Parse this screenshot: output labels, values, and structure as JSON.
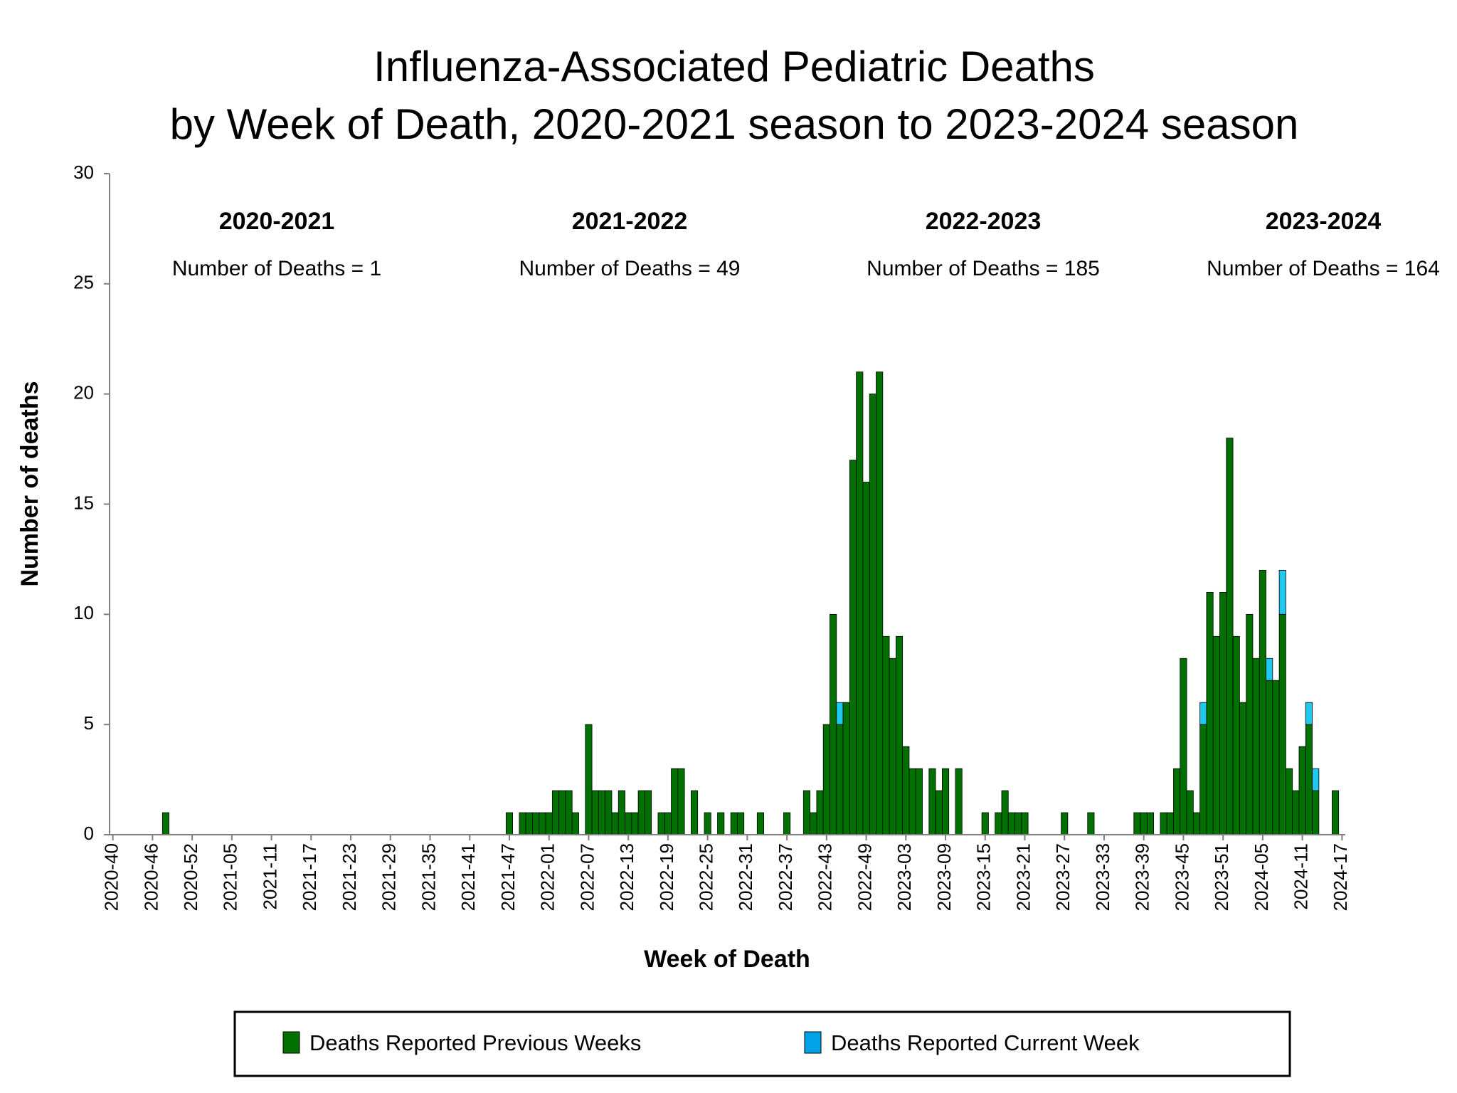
{
  "chart_data": {
    "type": "stacked_bar",
    "title": [
      "Influenza-Associated Pediatric Deaths",
      "by Week of Death, 2020-2021 season to 2023-2024 season"
    ],
    "xlabel": "Week of Death",
    "ylabel": "Number of deaths",
    "annotations": [
      {
        "title": "2020-2021",
        "text": "Number of Deaths = 1"
      },
      {
        "title": "2021-2022",
        "text": "Number of Deaths = 49"
      },
      {
        "title": "2022-2023",
        "text": "Number of Deaths = 185"
      },
      {
        "title": "2023-2024",
        "text": "Number of Deaths = 164"
      }
    ],
    "categories": [
      "2020-40",
      null,
      null,
      null,
      null,
      null,
      "2020-46",
      null,
      null,
      null,
      null,
      null,
      "2020-52",
      null,
      null,
      null,
      null,
      null,
      "2021-05",
      null,
      null,
      null,
      null,
      null,
      "2021-11",
      null,
      null,
      null,
      null,
      null,
      "2021-17",
      null,
      null,
      null,
      null,
      null,
      "2021-23",
      null,
      null,
      null,
      null,
      null,
      "2021-29",
      null,
      null,
      null,
      null,
      null,
      "2021-35",
      null,
      null,
      null,
      null,
      null,
      "2021-41",
      null,
      null,
      null,
      null,
      null,
      "2021-47",
      null,
      null,
      null,
      null,
      null,
      "2022-01",
      null,
      null,
      null,
      null,
      null,
      "2022-07",
      null,
      null,
      null,
      null,
      null,
      "2022-13",
      null,
      null,
      null,
      null,
      null,
      "2022-19",
      null,
      null,
      null,
      null,
      null,
      "2022-25",
      null,
      null,
      null,
      null,
      null,
      "2022-31",
      null,
      null,
      null,
      null,
      null,
      "2022-37",
      null,
      null,
      null,
      null,
      null,
      "2022-43",
      null,
      null,
      null,
      null,
      null,
      "2022-49",
      null,
      null,
      null,
      null,
      null,
      "2023-03",
      null,
      null,
      null,
      null,
      null,
      "2023-09",
      null,
      null,
      null,
      null,
      null,
      "2023-15",
      null,
      null,
      null,
      null,
      null,
      "2023-21",
      null,
      null,
      null,
      null,
      null,
      "2023-27",
      null,
      null,
      null,
      null,
      null,
      "2023-33",
      null,
      null,
      null,
      null,
      null,
      "2023-39",
      null,
      null,
      null,
      null,
      null,
      "2023-45",
      null,
      null,
      null,
      null,
      null,
      "2023-51",
      null,
      null,
      null,
      null,
      null,
      "2024-05",
      null,
      null,
      null,
      null,
      null,
      "2024-11",
      null,
      null,
      null,
      null,
      null,
      "2024-17"
    ],
    "series": [
      {
        "name": "Deaths Reported Previous Weeks",
        "color": "#007000",
        "values": [
          0,
          0,
          0,
          0,
          0,
          0,
          0,
          0,
          1,
          0,
          0,
          0,
          0,
          0,
          0,
          0,
          0,
          0,
          0,
          0,
          0,
          0,
          0,
          0,
          0,
          0,
          0,
          0,
          0,
          0,
          0,
          0,
          0,
          0,
          0,
          0,
          0,
          0,
          0,
          0,
          0,
          0,
          0,
          0,
          0,
          0,
          0,
          0,
          0,
          0,
          0,
          0,
          0,
          0,
          0,
          0,
          0,
          0,
          0,
          0,
          1,
          0,
          1,
          1,
          1,
          1,
          1,
          2,
          2,
          2,
          1,
          0,
          5,
          2,
          2,
          2,
          1,
          2,
          1,
          1,
          2,
          2,
          0,
          1,
          1,
          3,
          3,
          0,
          2,
          0,
          1,
          0,
          1,
          0,
          1,
          1,
          0,
          0,
          1,
          0,
          0,
          0,
          1,
          0,
          0,
          2,
          1,
          2,
          5,
          10,
          5,
          6,
          17,
          21,
          16,
          20,
          21,
          9,
          8,
          9,
          4,
          3,
          3,
          0,
          3,
          2,
          3,
          0,
          3,
          0,
          0,
          0,
          1,
          0,
          1,
          2,
          1,
          1,
          1,
          0,
          0,
          0,
          0,
          0,
          1,
          0,
          0,
          0,
          1,
          0,
          0,
          0,
          0,
          0,
          0,
          1,
          1,
          1,
          0,
          1,
          1,
          3,
          8,
          2,
          1,
          5,
          11,
          9,
          11,
          18,
          9,
          6,
          10,
          8,
          12,
          7,
          7,
          10,
          3,
          2,
          4,
          5,
          2,
          0,
          0,
          2,
          0
        ]
      },
      {
        "name": "Deaths Reported Current Week",
        "color": "#1ec8ee",
        "legend_color": "#00a2e8",
        "values": [
          0,
          0,
          0,
          0,
          0,
          0,
          0,
          0,
          0,
          0,
          0,
          0,
          0,
          0,
          0,
          0,
          0,
          0,
          0,
          0,
          0,
          0,
          0,
          0,
          0,
          0,
          0,
          0,
          0,
          0,
          0,
          0,
          0,
          0,
          0,
          0,
          0,
          0,
          0,
          0,
          0,
          0,
          0,
          0,
          0,
          0,
          0,
          0,
          0,
          0,
          0,
          0,
          0,
          0,
          0,
          0,
          0,
          0,
          0,
          0,
          0,
          0,
          0,
          0,
          0,
          0,
          0,
          0,
          0,
          0,
          0,
          0,
          0,
          0,
          0,
          0,
          0,
          0,
          0,
          0,
          0,
          0,
          0,
          0,
          0,
          0,
          0,
          0,
          0,
          0,
          0,
          0,
          0,
          0,
          0,
          0,
          0,
          0,
          0,
          0,
          0,
          0,
          0,
          0,
          0,
          0,
          0,
          0,
          0,
          0,
          1,
          0,
          0,
          0,
          0,
          0,
          0,
          0,
          0,
          0,
          0,
          0,
          0,
          0,
          0,
          0,
          0,
          0,
          0,
          0,
          0,
          0,
          0,
          0,
          0,
          0,
          0,
          0,
          0,
          0,
          0,
          0,
          0,
          0,
          0,
          0,
          0,
          0,
          0,
          0,
          0,
          0,
          0,
          0,
          0,
          0,
          0,
          0,
          0,
          0,
          0,
          0,
          0,
          0,
          0,
          1,
          0,
          0,
          0,
          0,
          0,
          0,
          0,
          0,
          0,
          1,
          0,
          2,
          0,
          0,
          0,
          1,
          1,
          0,
          0,
          0,
          0
        ]
      }
    ],
    "ylim": [
      0,
      30
    ],
    "yticks": [
      0,
      5,
      10,
      15,
      20,
      25,
      30
    ],
    "grid": false
  }
}
